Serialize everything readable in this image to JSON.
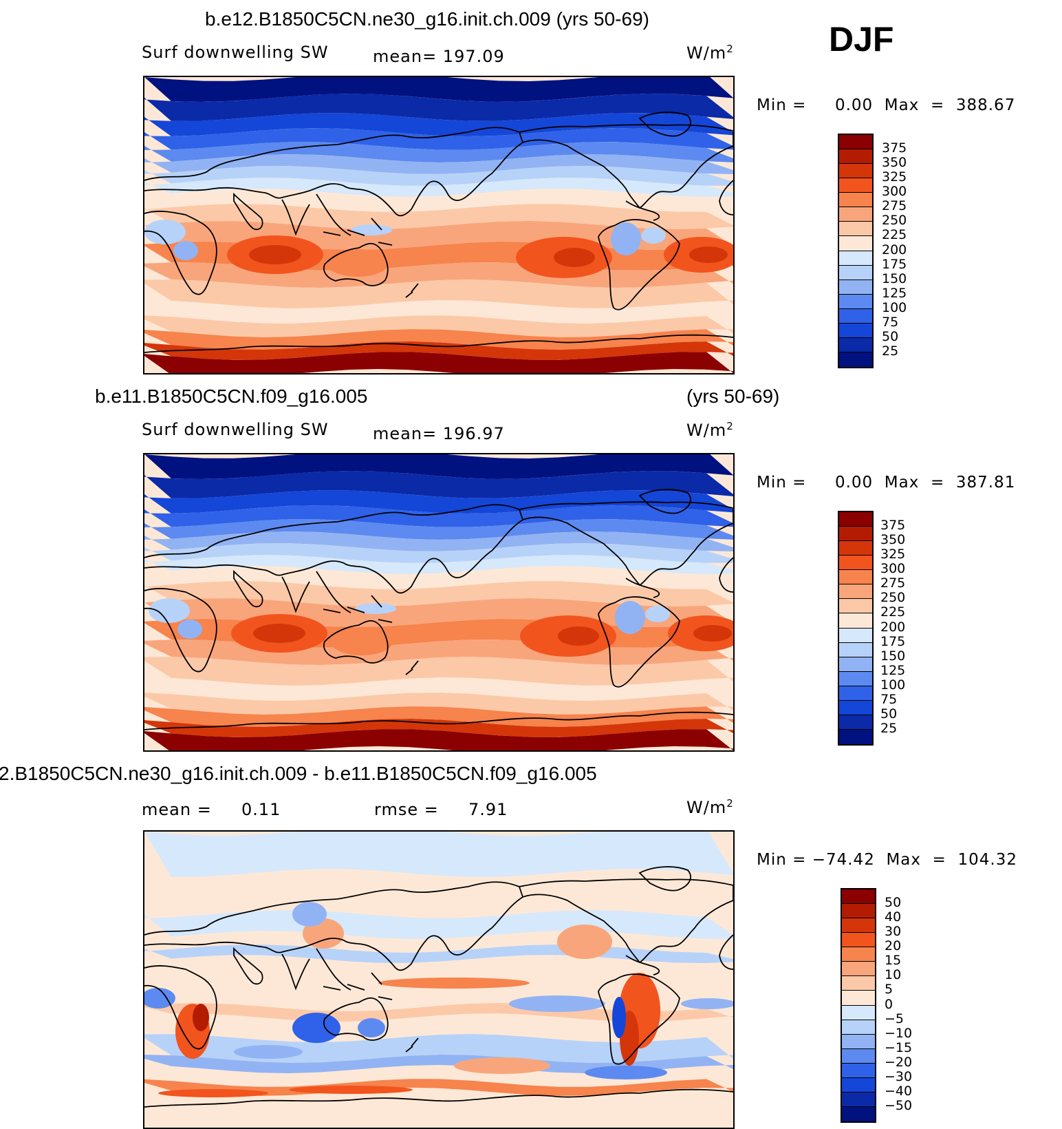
{
  "season": "DJF",
  "units_top": "W/m",
  "units_sup": "2",
  "panels": [
    {
      "case_title": "b.e12.B1850C5CN.ne30_g16.init.ch.009 (yrs 50-69)",
      "variable": "Surf downwelling SW",
      "stat": "mean=  197.09",
      "minmax": "Min =     0.00  Max  =  388.67"
    },
    {
      "case_title": "b.e11.B1850C5CN.f09_g16.005",
      "years": "(yrs 50-69)",
      "variable": "Surf downwelling SW",
      "stat": "mean=  196.97",
      "minmax": "Min =     0.00  Max  =  387.81"
    },
    {
      "case_title": "2.B1850C5CN.ne30_g16.init.ch.009 - b.e11.B1850C5CN.f09_g16.005",
      "stat_mean": "mean =     0.11",
      "stat_rmse": "rmse =     7.91",
      "minmax": "Min = −74.42  Max  =  104.32"
    }
  ],
  "chart_data": [
    {
      "type": "heatmap",
      "title": "b.e12.B1850C5CN.ne30_g16.init.ch.009 (yrs 50-69)",
      "variable": "Surf downwelling SW",
      "units": "W/m2",
      "mean": 197.09,
      "min": 0.0,
      "max": 388.67,
      "levels": [
        "375",
        "350",
        "325",
        "300",
        "275",
        "250",
        "225",
        "200",
        "175",
        "150",
        "125",
        "100",
        "75",
        "50",
        "25"
      ],
      "colors": [
        "#8b0000",
        "#b31c00",
        "#d4360a",
        "#f2541e",
        "#f7834d",
        "#f9a57b",
        "#fcc9a8",
        "#fde8d7",
        "#d6e8fb",
        "#b7d2f8",
        "#92b3f3",
        "#5d8af0",
        "#2f62e8",
        "#1446d8",
        "#0a2aa8",
        "#001180"
      ]
    },
    {
      "type": "heatmap",
      "title": "b.e11.B1850C5CN.f09_g16.005 (yrs 50-69)",
      "variable": "Surf downwelling SW",
      "units": "W/m2",
      "mean": 196.97,
      "min": 0.0,
      "max": 387.81,
      "levels": [
        "375",
        "350",
        "325",
        "300",
        "275",
        "250",
        "225",
        "200",
        "175",
        "150",
        "125",
        "100",
        "75",
        "50",
        "25"
      ],
      "colors": [
        "#8b0000",
        "#b31c00",
        "#d4360a",
        "#f2541e",
        "#f7834d",
        "#f9a57b",
        "#fcc9a8",
        "#fde8d7",
        "#d6e8fb",
        "#b7d2f8",
        "#92b3f3",
        "#5d8af0",
        "#2f62e8",
        "#1446d8",
        "#0a2aa8",
        "#001180"
      ]
    },
    {
      "type": "heatmap",
      "title": "2.B1850C5CN.ne30_g16.init.ch.009 - b.e11.B1850C5CN.f09_g16.005",
      "units": "W/m2",
      "mean": 0.11,
      "rmse": 7.91,
      "min": -74.42,
      "max": 104.32,
      "levels": [
        "50",
        "40",
        "30",
        "20",
        "15",
        "10",
        "5",
        "0",
        "−5",
        "−10",
        "−15",
        "−20",
        "−30",
        "−40",
        "−50"
      ],
      "colors": [
        "#8b0000",
        "#b31c00",
        "#d4360a",
        "#f2541e",
        "#f7834d",
        "#f9a57b",
        "#fcc9a8",
        "#fde8d7",
        "#d6e8fb",
        "#b7d2f8",
        "#92b3f3",
        "#5d8af0",
        "#2f62e8",
        "#1446d8",
        "#0a2aa8",
        "#001180"
      ]
    }
  ]
}
